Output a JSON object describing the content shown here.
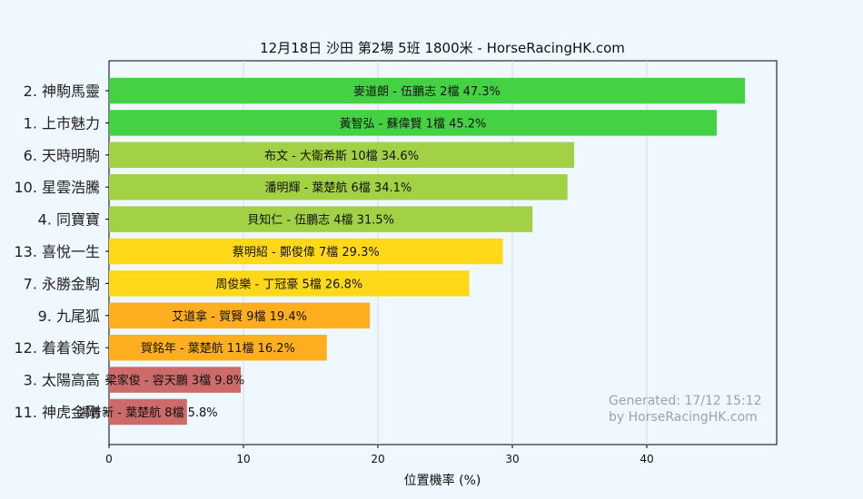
{
  "chart_data": {
    "type": "bar",
    "orientation": "horizontal",
    "title": "12月18日 沙田 第2場 5班 1800米 - HorseRacingHK.com",
    "xlabel": "位置機率 (%)",
    "ylabel": "",
    "xlim": [
      0,
      50
    ],
    "xticks": [
      0,
      10,
      20,
      30,
      40
    ],
    "grid": "vertical",
    "categories": [
      "2. 神駒馬靈",
      "1. 上市魅力",
      "6. 天時明駒",
      "10. 星雲浩騰",
      "4. 同寶寶",
      "13. 喜悅一生",
      "7. 永勝金駒",
      "9. 九尾狐",
      "12. 着着領先",
      "3. 太陽高高",
      "11. 神虎金剛"
    ],
    "values": [
      47.3,
      45.2,
      34.6,
      34.1,
      31.5,
      29.3,
      26.8,
      19.4,
      16.2,
      9.8,
      5.8
    ],
    "bar_labels": [
      "麥道朗 - 伍鵬志 2檔  47.3%",
      "黃智弘 - 蘇偉賢 1檔  45.2%",
      "布文 - 大衛希斯 10檔  34.6%",
      "潘明輝 - 葉楚航 6檔  34.1%",
      "貝知仁 - 伍鵬志 4檔  31.5%",
      "蔡明紹 - 鄭俊偉 7檔  29.3%",
      "周俊樂 - 丁冠豪 5檔  26.8%",
      "艾道拿 - 賀賢 9檔  19.4%",
      "賀銘年 - 葉楚航 11檔  16.2%",
      "梁家俊 - 容天鵬 3檔  9.8%",
      "湯普新 - 葉楚航 8檔  5.8%"
    ],
    "colors": [
      "#44d244",
      "#44d244",
      "#a2d146",
      "#a2d146",
      "#a2d146",
      "#ffd919",
      "#ffd919",
      "#ffae1f",
      "#ffae1f",
      "#cd6a6a",
      "#cd6a6a"
    ],
    "watermark": [
      "Generated: 17/12 15:12",
      "by HorseRacingHK.com"
    ]
  }
}
